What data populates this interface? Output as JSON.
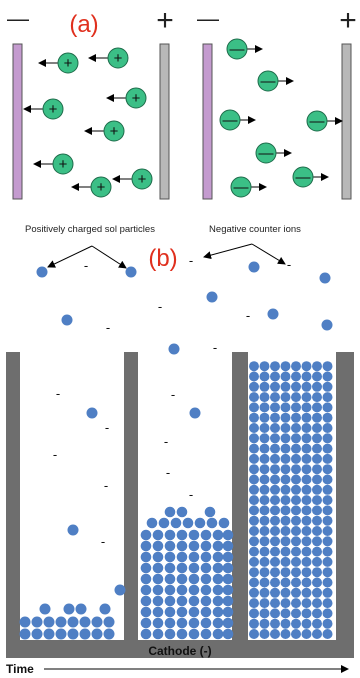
{
  "panel_a": {
    "label": "(a)",
    "left_cell": {
      "left_terminal": "—",
      "right_terminal": "+",
      "particle_sign": "+"
    },
    "right_cell": {
      "left_terminal": "—",
      "right_terminal": "+",
      "particle_sign": "—"
    }
  },
  "panel_b": {
    "label": "(b)",
    "annotation_left": "Positively charged sol particles",
    "annotation_right": "Negative counter ions",
    "counter_ion_sign": "-",
    "electrode_label": "Cathode (-)",
    "time_label": "Time"
  },
  "colors": {
    "green_particle": "#3bbf86",
    "blue_particle": "#4f7fc4",
    "purple_electrode": "#c49bcf",
    "grey_electrode": "#b8b8b8",
    "container_wall": "#6e6e6e",
    "label_red": "#e0301e"
  }
}
